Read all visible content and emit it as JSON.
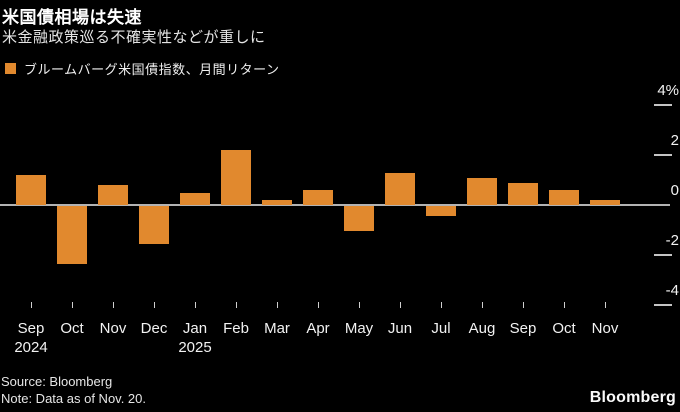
{
  "header": {
    "title": "米国債相場は失速",
    "subtitle": "米金融政策巡る不確実性などが重しに"
  },
  "legend": {
    "swatch_color": "#e1892e",
    "label": "ブルームバーグ米国債指数、月間リターン"
  },
  "chart_data": {
    "type": "bar",
    "title": "米国債相場は失速",
    "subtitle": "米金融政策巡る不確実性などが重しに",
    "series_name": "ブルームバーグ米国債指数、月間リターン",
    "unit": "%",
    "categories": [
      "Sep",
      "Oct",
      "Nov",
      "Dec",
      "Jan",
      "Feb",
      "Mar",
      "Apr",
      "May",
      "Jun",
      "Jul",
      "Aug",
      "Sep",
      "Oct",
      "Nov"
    ],
    "year_labels": [
      {
        "label": "2024",
        "index": 0
      },
      {
        "label": "2025",
        "index": 4
      }
    ],
    "values": [
      1.2,
      -2.3,
      0.8,
      -1.5,
      0.5,
      2.2,
      0.2,
      0.6,
      -1.0,
      1.3,
      -0.4,
      1.1,
      0.9,
      0.6,
      0.2
    ],
    "y_ticks": [
      {
        "value": 4,
        "label": "4%"
      },
      {
        "value": 2,
        "label": "2"
      },
      {
        "value": 0,
        "label": "0"
      },
      {
        "value": -2,
        "label": "-2"
      },
      {
        "value": -4,
        "label": "-4"
      }
    ],
    "ylim": [
      -4.8,
      4.8
    ],
    "bar_color": "#e1892e",
    "background_color": "#000000",
    "grid": false,
    "legend_position": "top-left",
    "axis_side": "right"
  },
  "footer": {
    "source": "Source: Bloomberg",
    "note": "Note: Data as of Nov. 20.",
    "logo": "Bloomberg"
  }
}
